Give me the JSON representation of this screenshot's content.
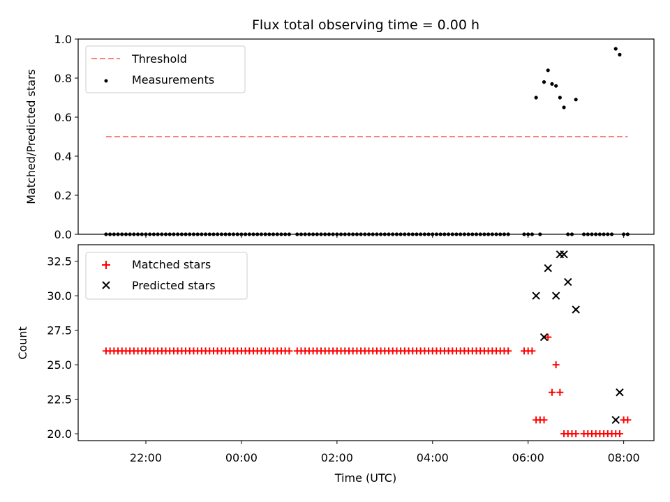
{
  "chart_data": [
    {
      "type": "scatter",
      "title": "Flux total observing time = 0.00 h",
      "xlabel": "",
      "ylabel": "Matched/Predicted stars",
      "ylim": [
        0.0,
        1.0
      ],
      "y_ticks": [
        "0.0",
        "0.2",
        "0.4",
        "0.6",
        "0.8",
        "1.0"
      ],
      "legend": {
        "placement": "top-left",
        "entries": [
          "Threshold",
          "Measurements"
        ]
      },
      "threshold": {
        "name": "Threshold",
        "value": 0.5,
        "x_start": "21:10",
        "x_end": "08:05",
        "color": "#ff7f7f",
        "style": "dashed"
      },
      "series": [
        {
          "name": "Measurements",
          "color": "#000000",
          "x": [
            "21:10",
            "21:15",
            "21:20",
            "21:25",
            "21:30",
            "21:35",
            "21:40",
            "21:45",
            "21:50",
            "21:55",
            "22:00",
            "22:05",
            "22:10",
            "22:15",
            "22:20",
            "22:25",
            "22:30",
            "22:35",
            "22:40",
            "22:45",
            "22:50",
            "22:55",
            "23:00",
            "23:05",
            "23:10",
            "23:15",
            "23:20",
            "23:25",
            "23:30",
            "23:35",
            "23:40",
            "23:45",
            "23:50",
            "23:55",
            "00:00",
            "00:05",
            "00:10",
            "00:15",
            "00:20",
            "00:25",
            "00:30",
            "00:35",
            "00:40",
            "00:45",
            "00:50",
            "00:55",
            "01:00",
            "01:10",
            "01:15",
            "01:20",
            "01:25",
            "01:30",
            "01:35",
            "01:40",
            "01:45",
            "01:50",
            "01:55",
            "02:00",
            "02:05",
            "02:10",
            "02:15",
            "02:20",
            "02:25",
            "02:30",
            "02:35",
            "02:40",
            "02:45",
            "02:50",
            "02:55",
            "03:00",
            "03:05",
            "03:10",
            "03:15",
            "03:20",
            "03:25",
            "03:30",
            "03:35",
            "03:40",
            "03:45",
            "03:50",
            "03:55",
            "04:00",
            "04:05",
            "04:10",
            "04:15",
            "04:20",
            "04:25",
            "04:30",
            "04:35",
            "04:40",
            "04:45",
            "04:50",
            "04:55",
            "05:00",
            "05:05",
            "05:10",
            "05:15",
            "05:20",
            "05:25",
            "05:30",
            "05:35",
            "05:55",
            "06:00",
            "06:05",
            "06:10",
            "06:15",
            "06:20",
            "06:25",
            "06:30",
            "06:35",
            "06:40",
            "06:45",
            "06:50",
            "06:55",
            "07:00",
            "07:10",
            "07:15",
            "07:20",
            "07:25",
            "07:30",
            "07:35",
            "07:40",
            "07:45",
            "07:50",
            "07:55",
            "08:00",
            "08:05"
          ],
          "y": [
            0,
            0,
            0,
            0,
            0,
            0,
            0,
            0,
            0,
            0,
            0,
            0,
            0,
            0,
            0,
            0,
            0,
            0,
            0,
            0,
            0,
            0,
            0,
            0,
            0,
            0,
            0,
            0,
            0,
            0,
            0,
            0,
            0,
            0,
            0,
            0,
            0,
            0,
            0,
            0,
            0,
            0,
            0,
            0,
            0,
            0,
            0,
            0,
            0,
            0,
            0,
            0,
            0,
            0,
            0,
            0,
            0,
            0,
            0,
            0,
            0,
            0,
            0,
            0,
            0,
            0,
            0,
            0,
            0,
            0,
            0,
            0,
            0,
            0,
            0,
            0,
            0,
            0,
            0,
            0,
            0,
            0,
            0,
            0,
            0,
            0,
            0,
            0,
            0,
            0,
            0,
            0,
            0,
            0,
            0,
            0,
            0,
            0,
            0,
            0,
            0,
            0,
            0,
            0,
            0.7,
            0,
            0.78,
            0.84,
            0.77,
            0.76,
            0.7,
            0.65,
            0,
            0,
            0.69,
            0,
            0,
            0,
            0,
            0,
            0,
            0,
            0,
            0.95,
            0.92,
            0,
            0
          ]
        }
      ]
    },
    {
      "type": "scatter",
      "title": "",
      "xlabel": "Time (UTC)",
      "ylabel": "Count",
      "ylim": [
        19.5,
        33.7
      ],
      "y_ticks": [
        "20.0",
        "22.5",
        "25.0",
        "27.5",
        "30.0",
        "32.5"
      ],
      "x_ticks": [
        "22:00",
        "00:00",
        "02:00",
        "04:00",
        "06:00",
        "08:00"
      ],
      "x_range": [
        "20:35",
        "08:38"
      ],
      "legend": {
        "placement": "top-left",
        "entries": [
          "Matched stars",
          "Predicted stars"
        ]
      },
      "series": [
        {
          "name": "Matched stars",
          "marker": "plus",
          "color": "#ff0000",
          "x": [
            "21:10",
            "21:15",
            "21:20",
            "21:25",
            "21:30",
            "21:35",
            "21:40",
            "21:45",
            "21:50",
            "21:55",
            "22:00",
            "22:05",
            "22:10",
            "22:15",
            "22:20",
            "22:25",
            "22:30",
            "22:35",
            "22:40",
            "22:45",
            "22:50",
            "22:55",
            "23:00",
            "23:05",
            "23:10",
            "23:15",
            "23:20",
            "23:25",
            "23:30",
            "23:35",
            "23:40",
            "23:45",
            "23:50",
            "23:55",
            "00:00",
            "00:05",
            "00:10",
            "00:15",
            "00:20",
            "00:25",
            "00:30",
            "00:35",
            "00:40",
            "00:45",
            "00:50",
            "00:55",
            "01:00",
            "01:10",
            "01:15",
            "01:20",
            "01:25",
            "01:30",
            "01:35",
            "01:40",
            "01:45",
            "01:50",
            "01:55",
            "02:00",
            "02:05",
            "02:10",
            "02:15",
            "02:20",
            "02:25",
            "02:30",
            "02:35",
            "02:40",
            "02:45",
            "02:50",
            "02:55",
            "03:00",
            "03:05",
            "03:10",
            "03:15",
            "03:20",
            "03:25",
            "03:30",
            "03:35",
            "03:40",
            "03:45",
            "03:50",
            "03:55",
            "04:00",
            "04:05",
            "04:10",
            "04:15",
            "04:20",
            "04:25",
            "04:30",
            "04:35",
            "04:40",
            "04:45",
            "04:50",
            "04:55",
            "05:00",
            "05:05",
            "05:10",
            "05:15",
            "05:20",
            "05:25",
            "05:30",
            "05:35",
            "05:55",
            "06:00",
            "06:05",
            "06:10",
            "06:15",
            "06:20",
            "06:25",
            "06:30",
            "06:35",
            "06:40",
            "06:45",
            "06:50",
            "06:55",
            "07:00",
            "07:10",
            "07:15",
            "07:20",
            "07:25",
            "07:30",
            "07:35",
            "07:40",
            "07:45",
            "07:50",
            "07:55",
            "08:00",
            "08:05"
          ],
          "y": [
            26,
            26,
            26,
            26,
            26,
            26,
            26,
            26,
            26,
            26,
            26,
            26,
            26,
            26,
            26,
            26,
            26,
            26,
            26,
            26,
            26,
            26,
            26,
            26,
            26,
            26,
            26,
            26,
            26,
            26,
            26,
            26,
            26,
            26,
            26,
            26,
            26,
            26,
            26,
            26,
            26,
            26,
            26,
            26,
            26,
            26,
            26,
            26,
            26,
            26,
            26,
            26,
            26,
            26,
            26,
            26,
            26,
            26,
            26,
            26,
            26,
            26,
            26,
            26,
            26,
            26,
            26,
            26,
            26,
            26,
            26,
            26,
            26,
            26,
            26,
            26,
            26,
            26,
            26,
            26,
            26,
            26,
            26,
            26,
            26,
            26,
            26,
            26,
            26,
            26,
            26,
            26,
            26,
            26,
            26,
            26,
            26,
            26,
            26,
            26,
            26,
            26,
            26,
            26,
            21,
            21,
            21,
            27,
            23,
            25,
            23,
            20,
            20,
            20,
            20,
            20,
            20,
            20,
            20,
            20,
            20,
            20,
            20,
            20,
            20,
            21,
            21
          ]
        },
        {
          "name": "Predicted stars",
          "marker": "x",
          "color": "#000000",
          "x": [
            "06:10",
            "06:20",
            "06:25",
            "06:35",
            "06:40",
            "06:45",
            "06:50",
            "07:00",
            "07:50",
            "07:55"
          ],
          "y": [
            30,
            27,
            32,
            30,
            33,
            33,
            31,
            29,
            21,
            23
          ]
        }
      ]
    }
  ]
}
